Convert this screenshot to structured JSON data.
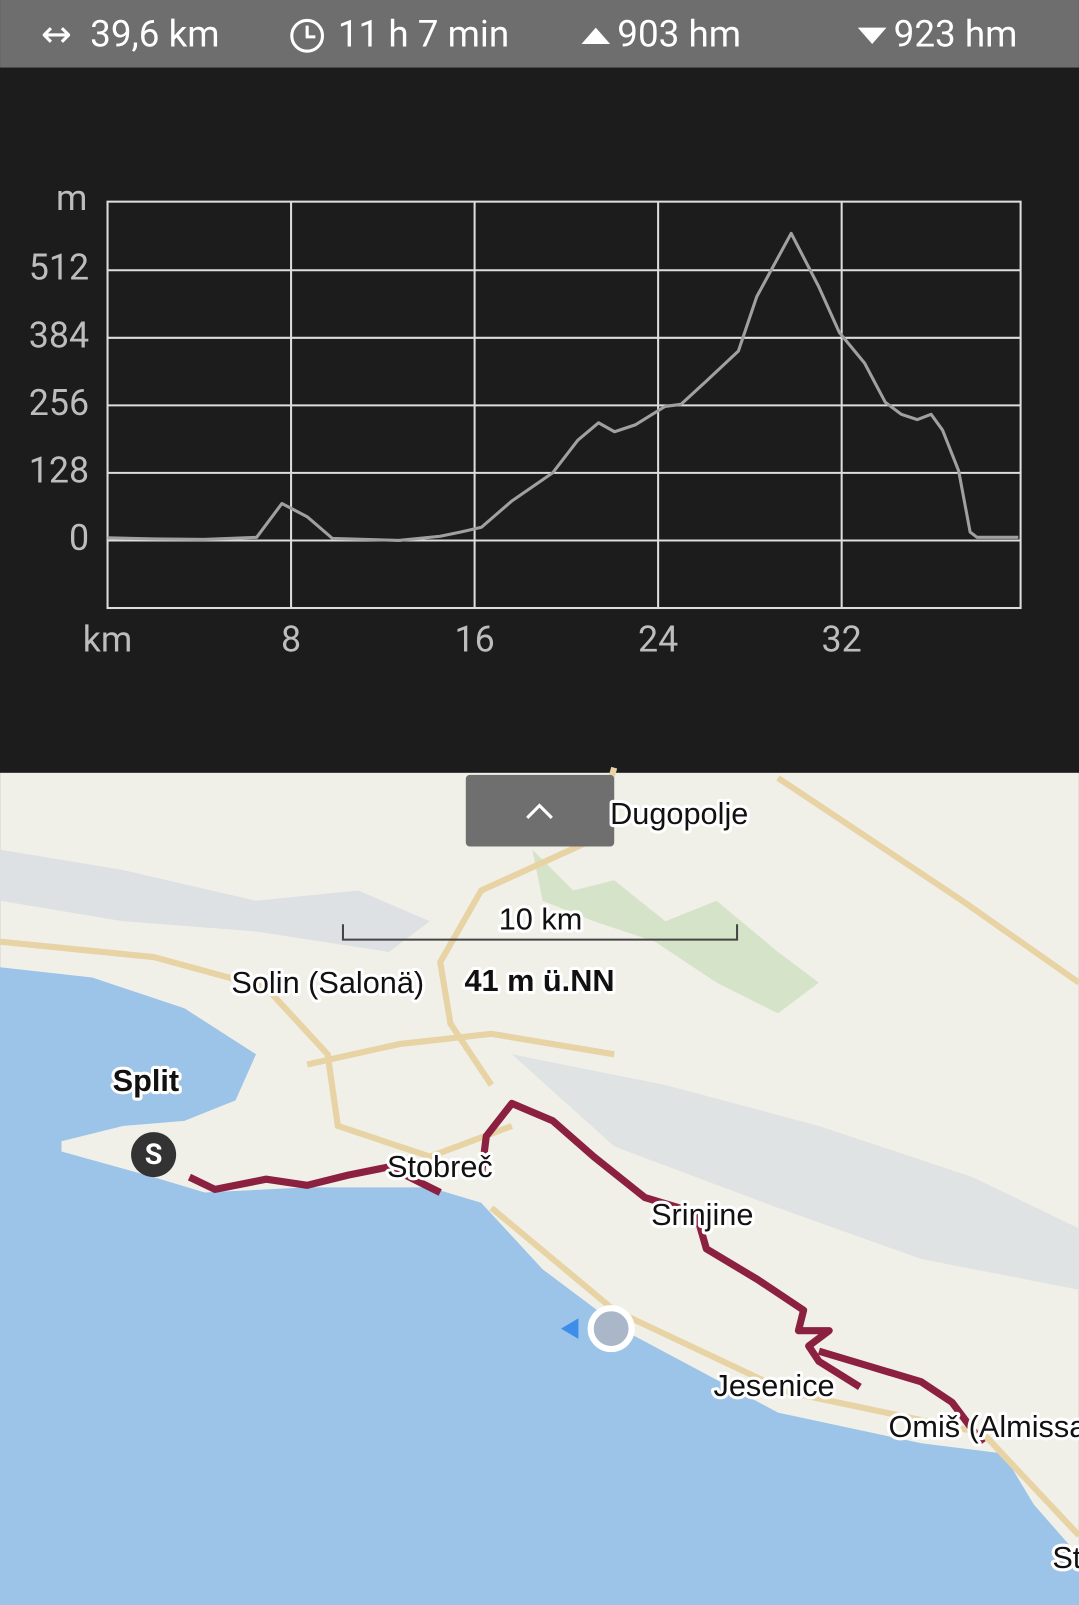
{
  "header": {
    "distance": "39,6 km",
    "duration": "11 h 7 min",
    "ascent": "903 hm",
    "descent": "923 hm"
  },
  "chart_data": {
    "type": "line",
    "x_label": "km",
    "y_label": "m",
    "x": [
      0,
      2,
      4.2,
      6.5,
      7.6,
      8.7,
      9.8,
      12.7,
      14.5,
      15.4,
      16.3,
      17.6,
      19.4,
      20.5,
      21.4,
      22.1,
      23,
      24.3,
      25,
      26.1,
      27.5,
      28.3,
      29.8,
      31,
      31.9,
      33,
      33.9,
      34.6,
      35.3,
      35.9,
      36.4,
      37.1,
      37.6,
      37.9,
      39.7
    ],
    "values": [
      5,
      3,
      2,
      6,
      70,
      45,
      4,
      0,
      8,
      16,
      25,
      74,
      128,
      190,
      223,
      206,
      219,
      254,
      258,
      302,
      359,
      462,
      582,
      481,
      394,
      336,
      262,
      239,
      229,
      239,
      209,
      132,
      16,
      6,
      6
    ],
    "color": "#a0a0a0",
    "xlim": [
      0,
      39.8
    ],
    "ylim": [
      -128,
      642
    ],
    "xticks": [
      8,
      16,
      24,
      32
    ],
    "yticks": [
      0,
      128,
      256,
      384,
      512
    ],
    "grid": true
  },
  "map": {
    "button": "^",
    "scale": "10 km",
    "elevation": "41 m ü.NN",
    "start_marker": "S",
    "labels": [
      "Dugopolje",
      "Solin (Salonä)",
      "Split",
      "Stobreč",
      "Srinjine",
      "Jesenice",
      "Omiš (Almissa)",
      "St"
    ]
  }
}
